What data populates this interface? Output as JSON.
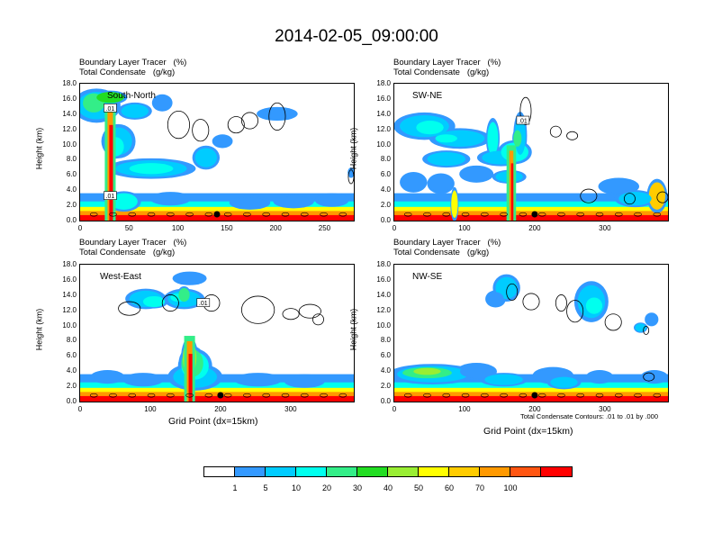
{
  "figure": {
    "title": "2014-02-05_09:00:00",
    "ylabel": "Height (km)",
    "xlabel": "Grid Point (dx=15km)",
    "footnote": "Total Condensate Contours: .01 to .01 by .000",
    "header_line1": "Boundary Layer Tracer   (%)",
    "header_line2": "Total Condensate   (g/kg)"
  },
  "colorbar": {
    "levels": [
      "1",
      "5",
      "10",
      "20",
      "30",
      "40",
      "50",
      "60",
      "70",
      "100"
    ],
    "colors": [
      "#ffffff",
      "#3399ff",
      "#00ccff",
      "#00ffee",
      "#33ee88",
      "#22dd22",
      "#99ee33",
      "#ffff00",
      "#ffcc00",
      "#ff9900",
      "#ff5511",
      "#ff0000"
    ]
  },
  "chart_data": [
    {
      "type": "heatmap",
      "label": "South-North",
      "xlim": [
        0,
        280
      ],
      "ylim": [
        0,
        18
      ],
      "xticks": [
        "0",
        "50",
        "100",
        "150",
        "200",
        "250"
      ],
      "xtick_values": [
        0,
        50,
        100,
        150,
        200,
        250
      ],
      "yticks": [
        "0.0",
        "2.0",
        "4.0",
        "6.0",
        "8.0",
        "10.0",
        "12.0",
        "14.0",
        "16.0",
        "18.0"
      ],
      "contour_labels": [
        ".01",
        ".01"
      ],
      "surface_point_x": 140
    },
    {
      "type": "heatmap",
      "label": "SW-NE",
      "xlim": [
        0,
        390
      ],
      "ylim": [
        0,
        18
      ],
      "xticks": [
        "0",
        "100",
        "200",
        "300"
      ],
      "xtick_values": [
        0,
        100,
        200,
        300
      ],
      "yticks": [
        "0.0",
        "2.0",
        "4.0",
        "6.0",
        "8.0",
        "10.0",
        "12.0",
        "14.0",
        "16.0",
        "18.0"
      ],
      "contour_labels": [
        ".01"
      ],
      "surface_point_x": 200
    },
    {
      "type": "heatmap",
      "label": "West-East",
      "xlim": [
        0,
        390
      ],
      "ylim": [
        0,
        18
      ],
      "xticks": [
        "0",
        "100",
        "200",
        "300"
      ],
      "xtick_values": [
        0,
        100,
        200,
        300
      ],
      "yticks": [
        "0.0",
        "2.0",
        "4.0",
        "6.0",
        "8.0",
        "10.0",
        "12.0",
        "14.0",
        "16.0",
        "18.0"
      ],
      "contour_labels": [
        ".01"
      ],
      "surface_point_x": 200
    },
    {
      "type": "heatmap",
      "label": "NW-SE",
      "xlim": [
        0,
        390
      ],
      "ylim": [
        0,
        18
      ],
      "xticks": [
        "0",
        "100",
        "200",
        "300"
      ],
      "xtick_values": [
        0,
        100,
        200,
        300
      ],
      "yticks": [
        "0.0",
        "2.0",
        "4.0",
        "6.0",
        "8.0",
        "10.0",
        "12.0",
        "14.0",
        "16.0",
        "18.0"
      ],
      "contour_labels": [],
      "surface_point_x": 200
    }
  ]
}
